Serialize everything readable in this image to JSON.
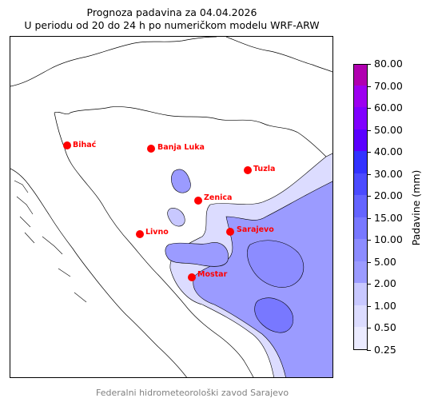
{
  "title": {
    "line1": "Prognoza padavina za 04.04.2026",
    "line2": "U periodu od 20 do 24 h po numeričkom modelu WRF-ARW"
  },
  "cities": [
    {
      "name": "Bihać"
    },
    {
      "name": "Banja Luka"
    },
    {
      "name": "Tuzla"
    },
    {
      "name": "Zenica"
    },
    {
      "name": "Livno"
    },
    {
      "name": "Sarajevo"
    },
    {
      "name": "Mostar"
    }
  ],
  "colorbar": {
    "label": "Padavine (mm)",
    "levels": [
      "0.25",
      "0.50",
      "1.00",
      "2.00",
      "5.00",
      "10.00",
      "15.00",
      "20.00",
      "30.00",
      "40.00",
      "50.00",
      "60.00",
      "70.00",
      "80.00"
    ],
    "colors": [
      "#ebebff",
      "#dcdcff",
      "#c8c8ff",
      "#9b9bff",
      "#8c8cff",
      "#7878ff",
      "#6464ff",
      "#4b4bff",
      "#3232ff",
      "#5a00ff",
      "#8000ff",
      "#9d00f0",
      "#b000b0"
    ]
  },
  "footer": "Federalni hidrometeorološki zavod Sarajevo"
}
